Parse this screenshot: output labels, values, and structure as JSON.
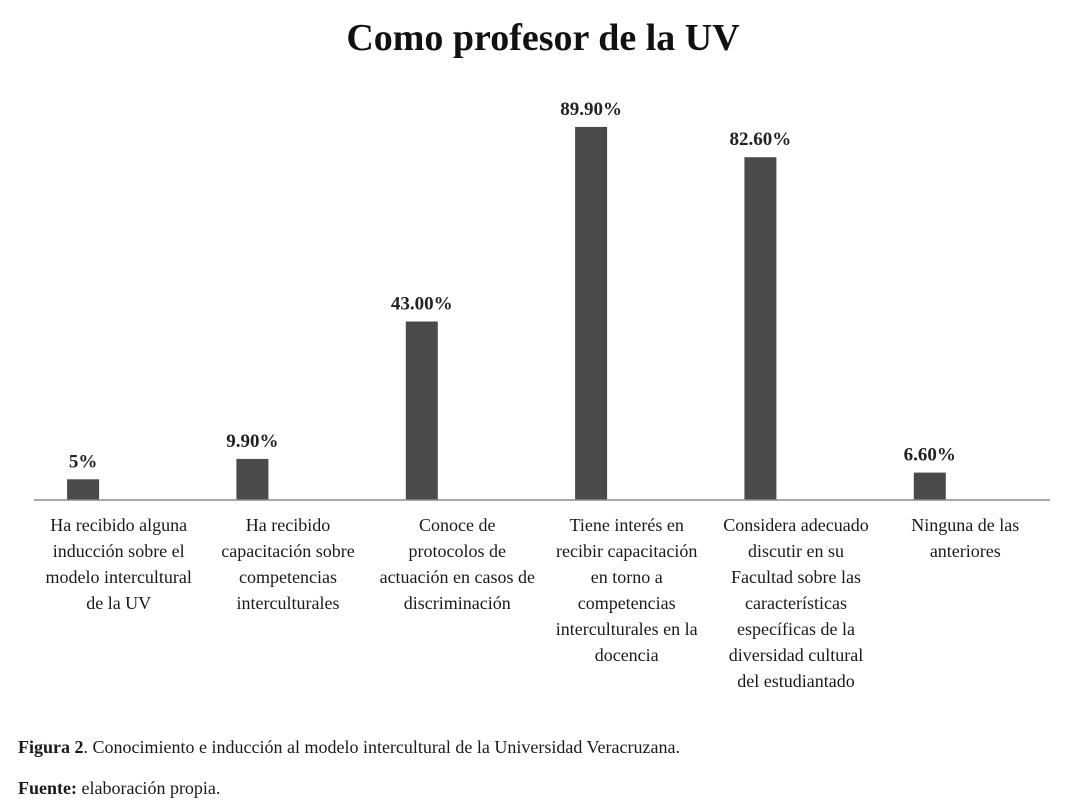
{
  "chart_data": {
    "type": "bar",
    "title": "Como profesor de la UV",
    "xlabel": "",
    "ylabel": "",
    "ylim": [
      0,
      100
    ],
    "grid": false,
    "legend": "none",
    "bar_color": "#4a4a4a",
    "axis_color": "#8c8c8c",
    "categories": [
      [
        "Ha recibido alguna",
        "inducción sobre el",
        "modelo intercultural",
        "de la UV"
      ],
      [
        "Ha recibido",
        "capacitación sobre",
        "competencias",
        "interculturales"
      ],
      [
        "Conoce de",
        "protocolos de",
        "actuación en casos de",
        "discriminación"
      ],
      [
        "Tiene interés en",
        "recibir capacitación",
        "en torno a",
        "competencias",
        "interculturales en la",
        "docencia"
      ],
      [
        "Considera adecuado",
        "discutir en su",
        "Facultad sobre las",
        "características",
        "específicas de la",
        "diversidad cultural",
        "del estudiantado"
      ],
      [
        "Ninguna de las",
        "anteriores"
      ]
    ],
    "values": [
      5,
      9.9,
      43.0,
      89.9,
      82.6,
      6.6
    ],
    "value_labels": [
      "5%",
      "9.90%",
      "43.00%",
      "89.90%",
      "82.60%",
      "6.60%"
    ]
  },
  "caption": {
    "figure_prefix": "Figura 2",
    "figure_text": ". Conocimiento e inducción al modelo intercultural de la Universidad Veracruzana.",
    "source_prefix": "Fuente:",
    "source_text": " elaboración propia."
  }
}
